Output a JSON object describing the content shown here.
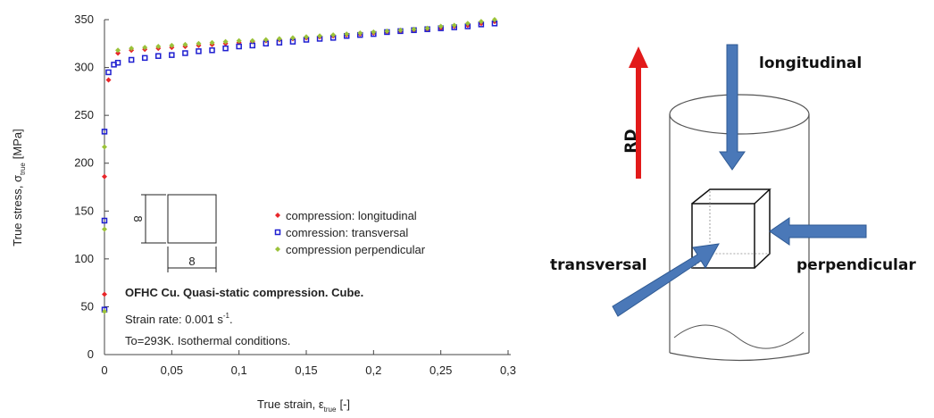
{
  "chart_data": {
    "type": "scatter",
    "x_label": "True strain, ε",
    "x_label_sub": "true",
    "x_label_unit": "[-]",
    "y_label": "True stress, σ",
    "y_label_sub": "true",
    "y_label_unit": "[MPa]",
    "xlim": [
      0,
      0.3
    ],
    "ylim": [
      0,
      350
    ],
    "xticks": [
      0,
      {
        "value": 0.05,
        "label": "0,05"
      },
      {
        "value": 0.1,
        "label": "0,1"
      },
      {
        "value": 0.15,
        "label": "0,15"
      },
      {
        "value": 0.2,
        "label": "0,2"
      },
      {
        "value": 0.25,
        "label": "0,25"
      },
      {
        "value": 0.3,
        "label": "0,3"
      }
    ],
    "yticks": [
      0,
      50,
      100,
      150,
      200,
      250,
      300,
      350
    ],
    "series": [
      {
        "name": "compression: longitudinal",
        "color": "#e8262a",
        "marker": "diamond",
        "x": [
          0,
          0,
          0.003,
          0.01,
          0.02,
          0.03,
          0.04,
          0.05,
          0.06,
          0.07,
          0.08,
          0.09,
          0.1,
          0.11,
          0.12,
          0.13,
          0.14,
          0.15,
          0.16,
          0.17,
          0.18,
          0.19,
          0.2,
          0.21,
          0.22,
          0.23,
          0.24,
          0.25,
          0.26,
          0.27,
          0.28,
          0.29
        ],
        "values": [
          63,
          186,
          287,
          315,
          318,
          319,
          320,
          321,
          322,
          323,
          324,
          325,
          326,
          327,
          328,
          329,
          330,
          331,
          332,
          333,
          334,
          335,
          336,
          337,
          338,
          339,
          340,
          341,
          343,
          344,
          346,
          348
        ]
      },
      {
        "name": "comression: transversal",
        "color": "#1f1fd0",
        "marker": "square",
        "x": [
          0,
          0,
          0,
          0.003,
          0.007,
          0.01,
          0.02,
          0.03,
          0.04,
          0.05,
          0.06,
          0.07,
          0.08,
          0.09,
          0.1,
          0.11,
          0.12,
          0.13,
          0.14,
          0.15,
          0.16,
          0.17,
          0.18,
          0.19,
          0.2,
          0.21,
          0.22,
          0.23,
          0.24,
          0.25,
          0.26,
          0.27,
          0.28,
          0.29
        ],
        "values": [
          47,
          140,
          233,
          295,
          303,
          305,
          308,
          310,
          312,
          313,
          315,
          317,
          318,
          320,
          322,
          323,
          325,
          326,
          327,
          329,
          330,
          331,
          333,
          334,
          335,
          337,
          338,
          339,
          340,
          341,
          342,
          343,
          345,
          346
        ]
      },
      {
        "name": "compression perpendicular",
        "color": "#9bc23a",
        "marker": "diamond",
        "x": [
          0,
          0,
          0,
          0.01,
          0.02,
          0.03,
          0.04,
          0.05,
          0.06,
          0.07,
          0.08,
          0.09,
          0.1,
          0.11,
          0.12,
          0.13,
          0.14,
          0.15,
          0.16,
          0.17,
          0.18,
          0.19,
          0.2,
          0.21,
          0.22,
          0.23,
          0.24,
          0.25,
          0.26,
          0.27,
          0.28,
          0.29
        ],
        "values": [
          45,
          131,
          217,
          318,
          320,
          321,
          322,
          323,
          324,
          325,
          326,
          327,
          328,
          328,
          329,
          330,
          331,
          332,
          333,
          334,
          335,
          336,
          337,
          338,
          339,
          340,
          341,
          343,
          344,
          346,
          348,
          350
        ]
      }
    ],
    "inset_height": "8",
    "inset_width": "8",
    "annotation_title": "OFHC Cu. Quasi-static compression. Cube.",
    "annotation_rate": "Strain rate: 0.001 s",
    "annotation_rate_sup": "-1",
    "annotation_rate_end": ".",
    "annotation_temp": "To=293K. Isothermal conditions."
  },
  "diagram": {
    "rd": "RD",
    "longitudinal": "longitudinal",
    "transversal": "transversal",
    "perpendicular": "perpendicular"
  }
}
